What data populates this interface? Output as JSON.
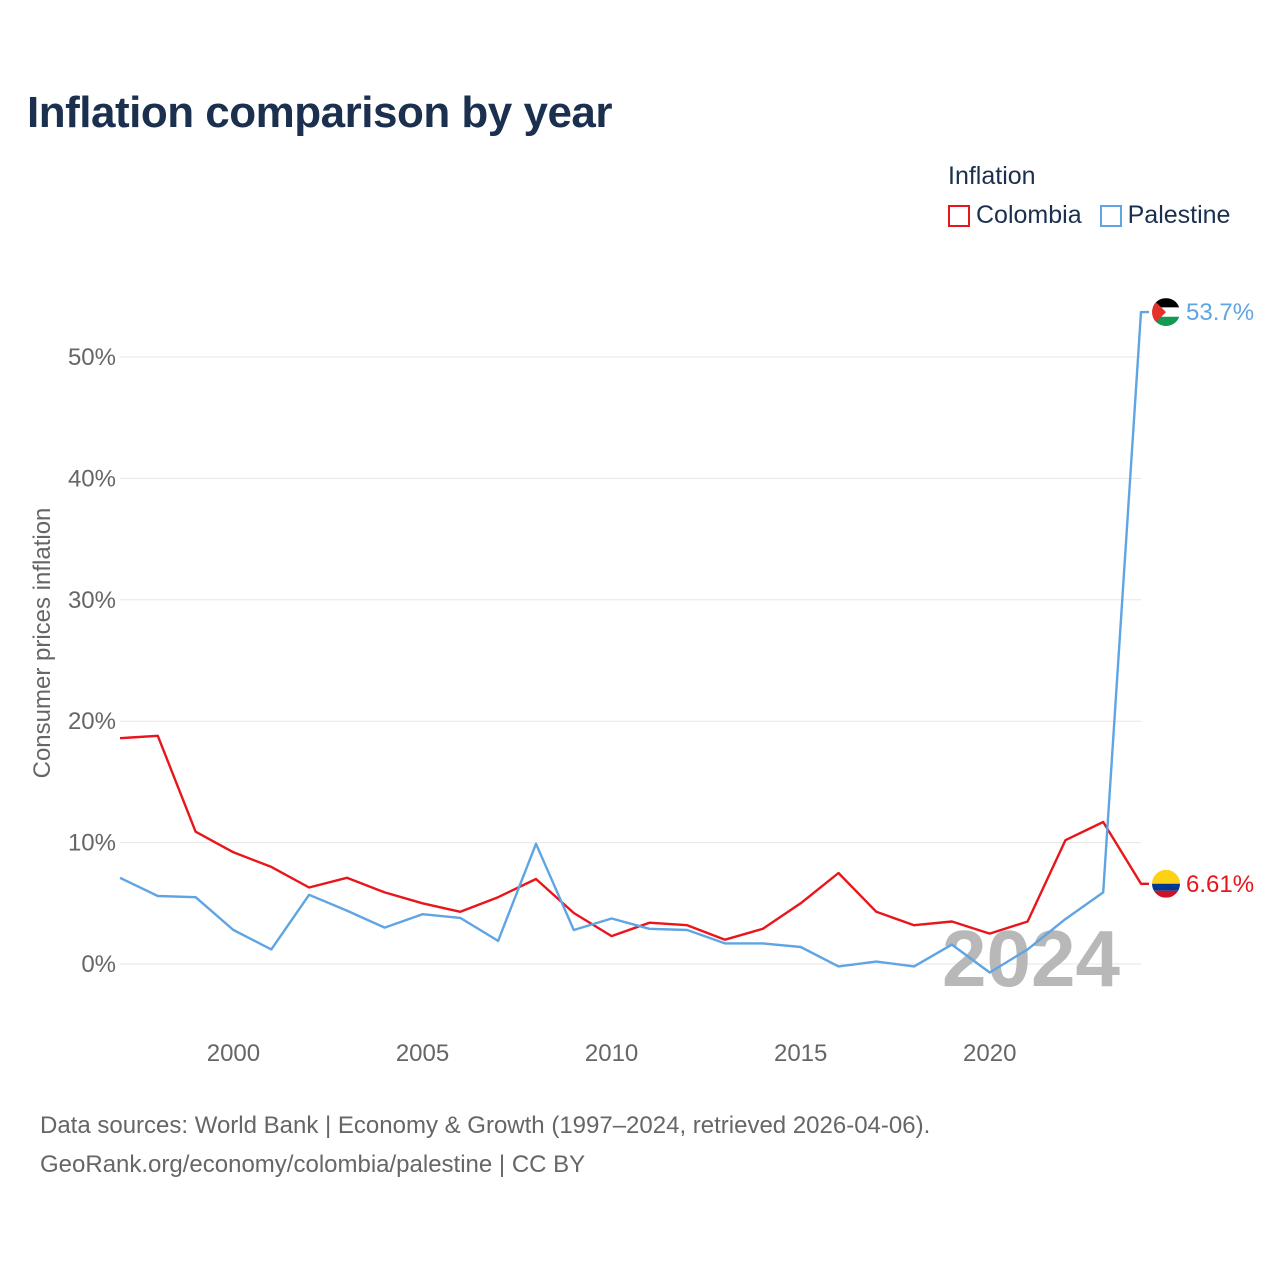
{
  "title": "Inflation comparison by year",
  "legend": {
    "title": "Inflation",
    "items": [
      {
        "name": "Colombia",
        "color": "#e8161b"
      },
      {
        "name": "Palestine",
        "color": "#5fa4e3"
      }
    ]
  },
  "source": {
    "line1": "Data sources: World Bank | Economy & Growth (1997–2024, retrieved 2026-04-06).",
    "line2": "GeoRank.org/economy/colombia/palestine | CC BY"
  },
  "chart_data": {
    "type": "line",
    "title": "Inflation comparison by year",
    "xlabel": "",
    "ylabel": "Consumer prices inflation",
    "x": [
      1997,
      1998,
      1999,
      2000,
      2001,
      2002,
      2003,
      2004,
      2005,
      2006,
      2007,
      2008,
      2009,
      2010,
      2011,
      2012,
      2013,
      2014,
      2015,
      2016,
      2017,
      2018,
      2019,
      2020,
      2021,
      2022,
      2023,
      2024
    ],
    "xlim": [
      1997,
      2024
    ],
    "ylim": [
      -5,
      57
    ],
    "xticks": [
      2000,
      2005,
      2010,
      2015,
      2020
    ],
    "yticks": [
      0,
      10,
      20,
      30,
      40,
      50
    ],
    "ytick_labels": [
      "0%",
      "10%",
      "20%",
      "30%",
      "40%",
      "50%"
    ],
    "grid": true,
    "year_watermark": "2024",
    "series": [
      {
        "name": "Colombia",
        "color": "#e8161b",
        "end_label": "6.61%",
        "values": [
          18.6,
          18.8,
          10.9,
          9.2,
          8.0,
          6.3,
          7.1,
          5.9,
          5.0,
          4.3,
          5.5,
          7.0,
          4.2,
          2.3,
          3.4,
          3.2,
          2.0,
          2.9,
          5.0,
          7.5,
          4.3,
          3.2,
          3.5,
          2.5,
          3.5,
          10.2,
          11.7,
          6.61
        ]
      },
      {
        "name": "Palestine",
        "color": "#5fa4e3",
        "end_label": "53.7%",
        "values": [
          7.1,
          5.6,
          5.5,
          2.8,
          1.2,
          5.7,
          4.4,
          3.0,
          4.1,
          3.8,
          1.9,
          9.9,
          2.8,
          3.75,
          2.9,
          2.8,
          1.7,
          1.7,
          1.4,
          -0.2,
          0.2,
          -0.2,
          1.6,
          -0.7,
          1.2,
          3.7,
          5.9,
          53.7
        ]
      }
    ]
  }
}
